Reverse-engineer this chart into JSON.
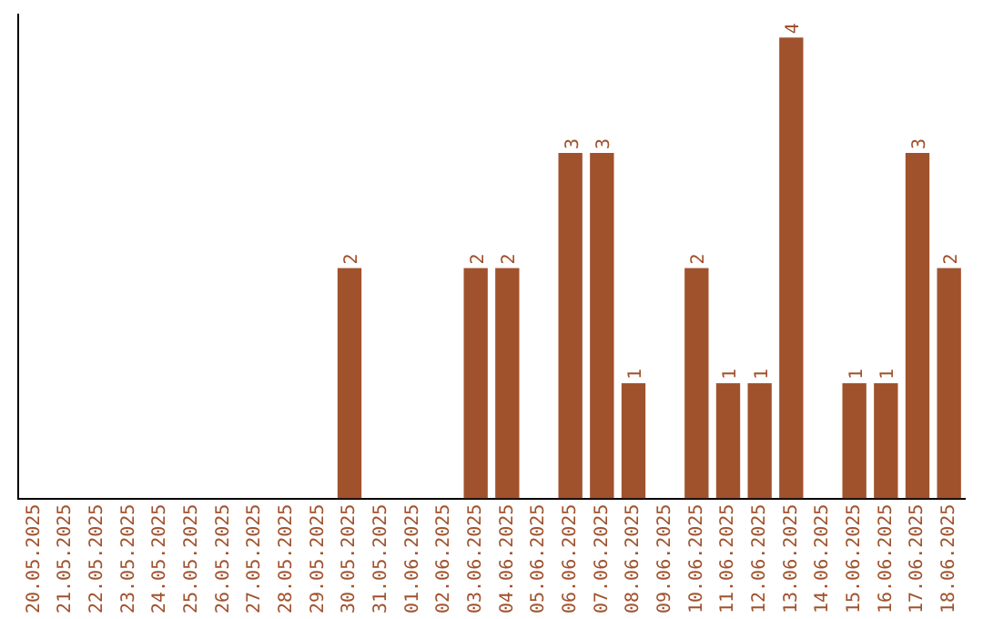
{
  "chart_data": {
    "type": "bar",
    "categories": [
      "20.05.2025",
      "21.05.2025",
      "22.05.2025",
      "23.05.2025",
      "24.05.2025",
      "25.05.2025",
      "26.05.2025",
      "27.05.2025",
      "28.05.2025",
      "29.05.2025",
      "30.05.2025",
      "31.05.2025",
      "01.06.2025",
      "02.06.2025",
      "03.06.2025",
      "04.06.2025",
      "05.06.2025",
      "06.06.2025",
      "07.06.2025",
      "08.06.2025",
      "09.06.2025",
      "10.06.2025",
      "11.06.2025",
      "12.06.2025",
      "13.06.2025",
      "14.06.2025",
      "15.06.2025",
      "16.06.2025",
      "17.06.2025",
      "18.06.2025"
    ],
    "values": [
      0,
      0,
      0,
      0,
      0,
      0,
      0,
      0,
      0,
      0,
      2,
      0,
      0,
      0,
      2,
      2,
      0,
      3,
      3,
      1,
      0,
      2,
      1,
      1,
      4,
      0,
      1,
      1,
      3,
      2
    ],
    "value_labels": [
      null,
      null,
      null,
      null,
      null,
      null,
      null,
      null,
      null,
      null,
      "2",
      null,
      null,
      null,
      "2",
      "2",
      null,
      "3",
      "3",
      "1",
      null,
      "2",
      "1",
      "1",
      "4",
      null,
      "1",
      "1",
      "3",
      "2"
    ],
    "color": "#a0522d",
    "ylim": [
      0,
      4.2
    ],
    "tick_labels": "x",
    "grid": false,
    "legend": false
  }
}
